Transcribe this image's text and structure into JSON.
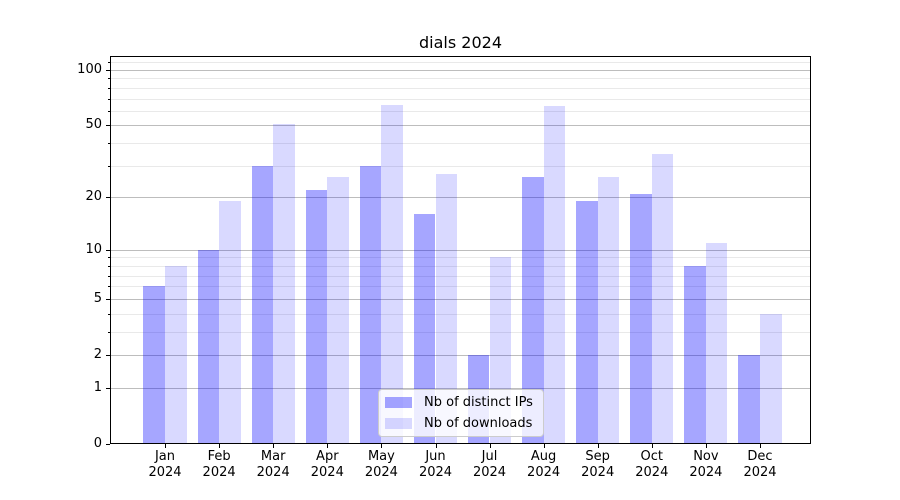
{
  "chart_data": {
    "type": "bar",
    "title": "dials 2024",
    "categories": [
      "Jan",
      "Feb",
      "Mar",
      "Apr",
      "May",
      "Jun",
      "Jul",
      "Aug",
      "Sep",
      "Oct",
      "Nov",
      "Dec"
    ],
    "category_year": "2024",
    "series": [
      {
        "name": "Nb of distinct IPs",
        "color": "#0000ff",
        "alpha": 0.35,
        "values": [
          6,
          10,
          30,
          22,
          30,
          16,
          2,
          26,
          19,
          21,
          8,
          2
        ]
      },
      {
        "name": "Nb of downloads",
        "color": "#0000ff",
        "alpha": 0.15,
        "values": [
          8,
          19,
          51,
          26,
          65,
          27,
          9,
          64,
          26,
          35,
          11,
          4
        ]
      }
    ],
    "yscale": "log1p",
    "y_ticks": [
      0,
      1,
      2,
      5,
      10,
      20,
      50,
      100
    ],
    "y_minor_ticks": [
      3,
      4,
      6,
      7,
      8,
      9,
      30,
      40,
      60,
      70,
      80,
      90,
      110
    ],
    "ylim": [
      0,
      119
    ],
    "grid": "both",
    "grid_major_color": "#bdbdbd",
    "grid_minor_color": "#e9e9e9",
    "legend_position": "lower center"
  }
}
